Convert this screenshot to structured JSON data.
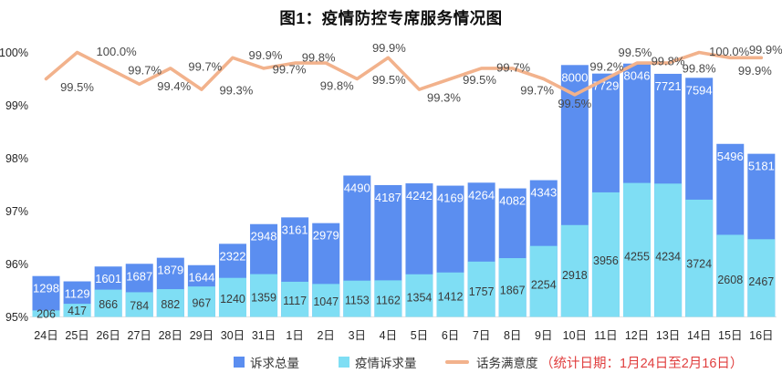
{
  "chart_data": {
    "type": "bar+line",
    "title": "图1：疫情防控专席服务情况图",
    "categories": [
      "24日",
      "25日",
      "26日",
      "27日",
      "28日",
      "29日",
      "30日",
      "31日",
      "1日",
      "2日",
      "3日",
      "4日",
      "5日",
      "6日",
      "7日",
      "8日",
      "9日",
      "10日",
      "11日",
      "12日",
      "13日",
      "14日",
      "15日",
      "16日"
    ],
    "series": [
      {
        "name": "诉求总量",
        "type": "bar",
        "color": "#5B8EF0",
        "values": [
          1298,
          1129,
          1601,
          1687,
          1879,
          1644,
          2322,
          2948,
          3161,
          2979,
          4490,
          4187,
          4242,
          4169,
          4264,
          4082,
          4343,
          8000,
          7729,
          8046,
          7721,
          7594,
          5496,
          5181
        ]
      },
      {
        "name": "疫情诉求量",
        "type": "bar",
        "color": "#7FDEF4",
        "values": [
          206,
          417,
          866,
          784,
          882,
          967,
          1240,
          1359,
          1117,
          1047,
          1153,
          1162,
          1354,
          1412,
          1757,
          1867,
          2254,
          2918,
          3956,
          4255,
          4234,
          3724,
          2608,
          2467
        ]
      },
      {
        "name": "话务满意度",
        "type": "line",
        "color": "#F2B28C",
        "unit": "%",
        "values": [
          99.5,
          100.0,
          99.7,
          99.4,
          99.7,
          99.3,
          99.9,
          99.7,
          99.8,
          99.8,
          99.5,
          99.9,
          99.3,
          99.5,
          99.7,
          99.7,
          99.5,
          99.2,
          99.5,
          99.8,
          99.8,
          100.0,
          99.9,
          99.9
        ]
      }
    ],
    "y_axis": {
      "ticks": [
        "100%",
        "99%",
        "98%",
        "97%",
        "96%",
        "95%"
      ],
      "min": 95,
      "max": 100,
      "unit": "%",
      "grid": false
    },
    "legend_position": "bottom",
    "note": "（统计日期：1月24日至2月16日）",
    "note_color": "#E03E3E",
    "label_colors": {
      "total_label": "#ffffff",
      "epidemic_label": "#3a3a3a",
      "line_label": "#4a4a4a",
      "axis_label": "#262626"
    }
  }
}
